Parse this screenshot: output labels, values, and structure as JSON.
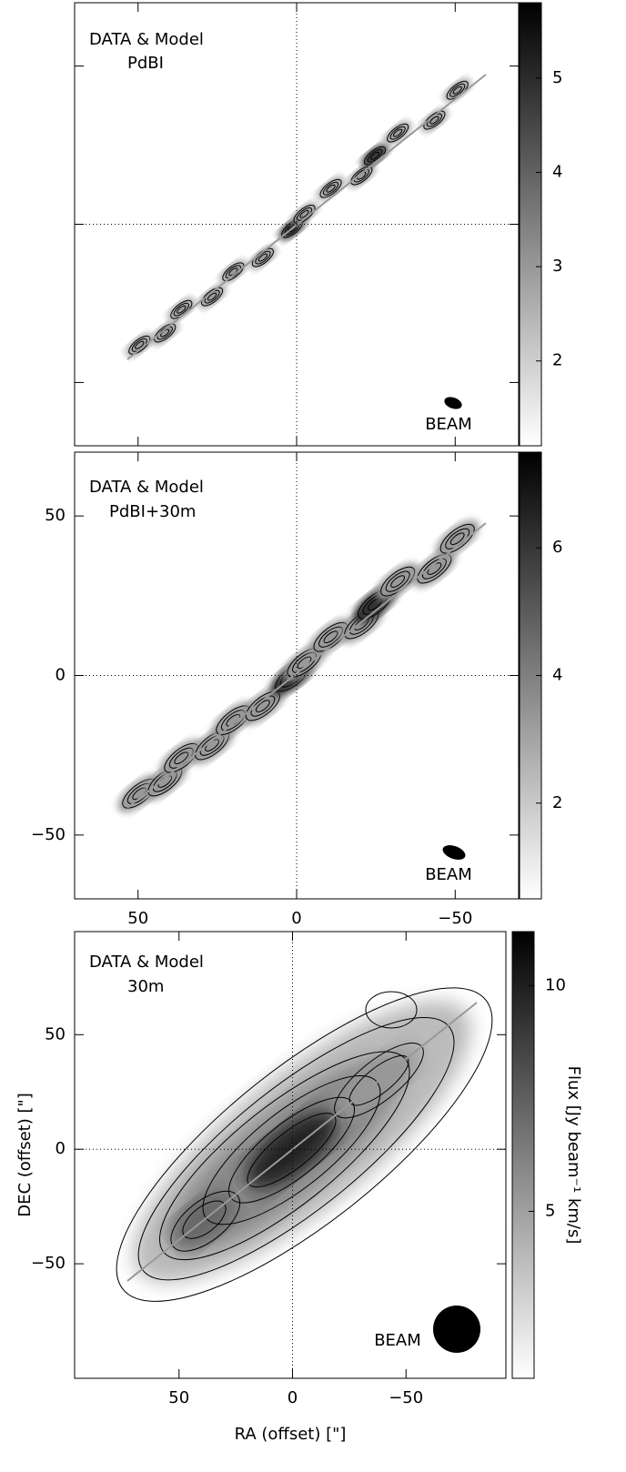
{
  "chart_data": [
    {
      "type": "image",
      "annotations": [
        "DATA & Model",
        "PdBI"
      ],
      "beam_label": "BEAM",
      "xlim": [
        70,
        -70
      ],
      "ylim": [
        -70,
        70
      ],
      "xticks": [
        50,
        0,
        -50
      ],
      "yticks": [
        50,
        0,
        -50
      ],
      "x_tick_labels": false,
      "y_tick_labels": false,
      "crosshair": true,
      "colorbar": {
        "clim": [
          1.1,
          5.8
        ],
        "ticks": [
          2,
          3,
          4,
          5
        ]
      }
    },
    {
      "type": "image",
      "annotations": [
        "DATA & Model",
        "PdBI+30m"
      ],
      "beam_label": "BEAM",
      "xlim": [
        70,
        -70
      ],
      "ylim": [
        -70,
        70
      ],
      "xticks": [
        50,
        0,
        {
          "value": -50,
          "label": "−50"
        }
      ],
      "yticks": [
        50,
        0,
        {
          "value": -50,
          "label": "−50"
        }
      ],
      "x_tick_labels": true,
      "y_tick_labels": true,
      "crosshair": true,
      "colorbar": {
        "clim": [
          0.5,
          7.5
        ],
        "ticks": [
          2,
          4,
          6
        ]
      }
    },
    {
      "type": "image",
      "annotations": [
        "DATA & Model",
        "30m"
      ],
      "beam_label": "BEAM",
      "xlim": [
        96,
        -94
      ],
      "ylim": [
        -100,
        95
      ],
      "xticks": [
        50,
        0,
        {
          "value": -50,
          "label": "−50"
        }
      ],
      "yticks": [
        50,
        0,
        {
          "value": -50,
          "label": "−50"
        }
      ],
      "x_tick_labels": true,
      "y_tick_labels": true,
      "crosshair": true,
      "x_label": "RA (offset) [\"]",
      "y_label": "DEC (offset) [\"]",
      "colorbar": {
        "clim": [
          1.3,
          11.2
        ],
        "ticks": [
          5,
          10
        ],
        "label": "Flux [Jy beam⁻¹ km/s]"
      }
    }
  ]
}
